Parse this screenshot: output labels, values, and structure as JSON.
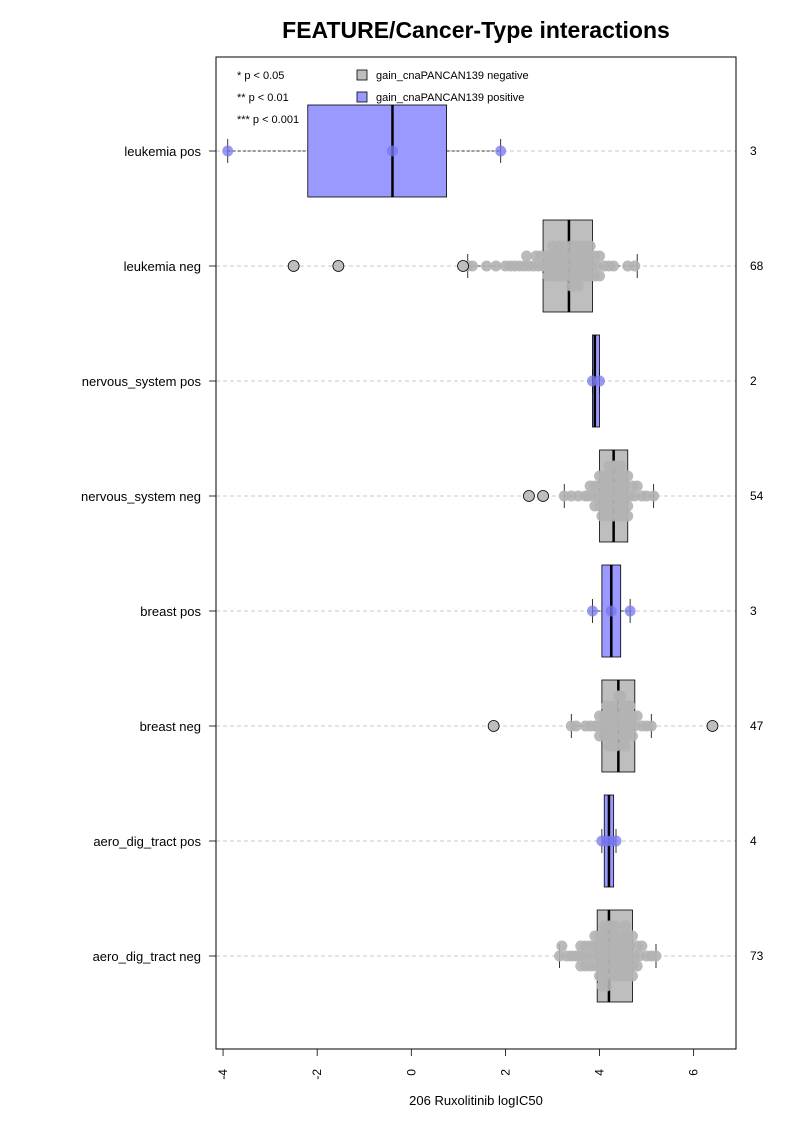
{
  "chart_data": {
    "type": "box",
    "title": "FEATURE/Cancer-Type interactions",
    "xlabel": "206 Ruxolitinib logIC50",
    "xlim": [
      -4.15,
      6.9
    ],
    "xticks": [
      -4,
      -2,
      0,
      2,
      4,
      6
    ],
    "xtick_labels": [
      "-4",
      "-2",
      "0",
      "2",
      "4",
      "6"
    ],
    "legend": {
      "placement": "top-left",
      "significance": [
        "* p < 0.05",
        "** p < 0.01",
        "*** p < 0.001"
      ],
      "entries": [
        {
          "label": "gain_cnaPANCAN139 negative",
          "color": "#bebebe"
        },
        {
          "label": "gain_cnaPANCAN139 positive",
          "color": "#9999ff"
        }
      ]
    },
    "colors": {
      "negative_box": "#bebebe",
      "positive_box": "#9999ff",
      "negative_point": "#b3b3b3",
      "positive_point": "#7777ee",
      "gridline": "#c8c8c8"
    },
    "groups": [
      {
        "label": "leukemia pos",
        "n": "3",
        "group": "positive",
        "q1": -2.2,
        "median": -0.4,
        "q3": 0.75,
        "whisker_low": -3.9,
        "whisker_high": 1.9,
        "outliers": [],
        "points": [
          -3.9,
          -0.4,
          1.9
        ]
      },
      {
        "label": "leukemia neg",
        "n": "68",
        "group": "negative",
        "q1": 2.8,
        "median": 3.35,
        "q3": 3.85,
        "whisker_low": 1.2,
        "whisker_high": 4.8,
        "outliers": [
          -2.5,
          -1.55,
          1.1
        ],
        "points": [
          1.2,
          1.3,
          1.6,
          1.8,
          2.0,
          2.1,
          2.3,
          2.4,
          2.5,
          2.6,
          2.7,
          2.8,
          2.85,
          2.9,
          2.95,
          3.0,
          3.0,
          3.05,
          3.1,
          3.1,
          3.15,
          3.2,
          3.2,
          3.25,
          3.3,
          3.3,
          3.35,
          3.35,
          3.4,
          3.4,
          3.45,
          3.5,
          3.5,
          3.55,
          3.6,
          3.6,
          3.65,
          3.7,
          3.7,
          3.75,
          3.8,
          3.8,
          3.85,
          3.9,
          3.95,
          4.0,
          4.1,
          4.2,
          4.3,
          4.6,
          4.75,
          2.2,
          2.45,
          2.65,
          2.75,
          2.9,
          3.0,
          3.15,
          3.25,
          3.4,
          3.5,
          3.6,
          3.7,
          3.8,
          3.9,
          4.0,
          3.55,
          3.45
        ]
      },
      {
        "label": "nervous_system pos",
        "n": "2",
        "group": "positive",
        "q1": 3.85,
        "median": 3.9,
        "q3": 4.0,
        "whisker_low": 3.85,
        "whisker_high": 4.0,
        "outliers": [],
        "points": [
          3.85,
          4.0
        ]
      },
      {
        "label": "nervous_system neg",
        "n": "54",
        "group": "negative",
        "q1": 4.0,
        "median": 4.3,
        "q3": 4.6,
        "whisker_low": 3.25,
        "whisker_high": 5.15,
        "outliers": [
          2.5,
          2.8
        ],
        "points": [
          3.25,
          3.4,
          3.55,
          3.7,
          3.75,
          3.8,
          3.85,
          3.9,
          3.95,
          4.0,
          4.0,
          4.05,
          4.1,
          4.1,
          4.15,
          4.15,
          4.2,
          4.2,
          4.25,
          4.25,
          4.3,
          4.3,
          4.3,
          4.35,
          4.35,
          4.4,
          4.4,
          4.45,
          4.45,
          4.5,
          4.5,
          4.55,
          4.55,
          4.6,
          4.6,
          4.65,
          4.7,
          4.75,
          4.8,
          4.9,
          5.0,
          5.15,
          3.9,
          4.0,
          4.1,
          4.2,
          4.3,
          4.4,
          4.5,
          4.6,
          4.2,
          4.35,
          4.45,
          4.05
        ]
      },
      {
        "label": "breast pos",
        "n": "3",
        "group": "positive",
        "q1": 4.05,
        "median": 4.25,
        "q3": 4.45,
        "whisker_low": 3.85,
        "whisker_high": 4.65,
        "outliers": [],
        "points": [
          3.85,
          4.25,
          4.65
        ]
      },
      {
        "label": "breast neg",
        "n": "47",
        "group": "negative",
        "q1": 4.05,
        "median": 4.4,
        "q3": 4.75,
        "whisker_low": 3.4,
        "whisker_high": 5.1,
        "outliers": [
          1.75,
          6.4
        ],
        "points": [
          3.4,
          3.5,
          3.7,
          3.8,
          3.9,
          3.95,
          4.0,
          4.05,
          4.1,
          4.1,
          4.15,
          4.2,
          4.2,
          4.25,
          4.3,
          4.3,
          4.35,
          4.35,
          4.4,
          4.4,
          4.45,
          4.45,
          4.5,
          4.5,
          4.55,
          4.6,
          4.6,
          4.65,
          4.7,
          4.7,
          4.75,
          4.8,
          4.9,
          5.0,
          5.1,
          4.0,
          4.15,
          4.25,
          4.35,
          4.5,
          4.6,
          4.4,
          4.2,
          4.55,
          4.3,
          4.65,
          4.45
        ]
      },
      {
        "label": "aero_dig_tract pos",
        "n": "4",
        "group": "positive",
        "q1": 4.1,
        "median": 4.2,
        "q3": 4.3,
        "whisker_low": 4.05,
        "whisker_high": 4.35,
        "outliers": [],
        "points": [
          4.05,
          4.15,
          4.25,
          4.35
        ]
      },
      {
        "label": "aero_dig_tract neg",
        "n": "73",
        "group": "negative",
        "q1": 3.95,
        "median": 4.2,
        "q3": 4.7,
        "whisker_low": 3.15,
        "whisker_high": 5.2,
        "outliers": [],
        "points": [
          3.15,
          3.2,
          3.3,
          3.4,
          3.5,
          3.55,
          3.6,
          3.65,
          3.7,
          3.75,
          3.8,
          3.85,
          3.9,
          3.9,
          3.95,
          3.95,
          4.0,
          4.0,
          4.05,
          4.05,
          4.1,
          4.1,
          4.1,
          4.15,
          4.15,
          4.2,
          4.2,
          4.2,
          4.25,
          4.25,
          4.3,
          4.3,
          4.35,
          4.35,
          4.4,
          4.4,
          4.45,
          4.45,
          4.5,
          4.5,
          4.55,
          4.55,
          4.6,
          4.6,
          4.65,
          4.65,
          4.7,
          4.7,
          4.75,
          4.8,
          4.85,
          4.9,
          5.0,
          5.1,
          5.2,
          3.6,
          3.8,
          4.0,
          4.2,
          4.4,
          4.6,
          4.8,
          3.7,
          3.9,
          4.1,
          4.3,
          4.5,
          4.7,
          4.15,
          4.35,
          4.55,
          4.05,
          4.25
        ]
      }
    ]
  }
}
